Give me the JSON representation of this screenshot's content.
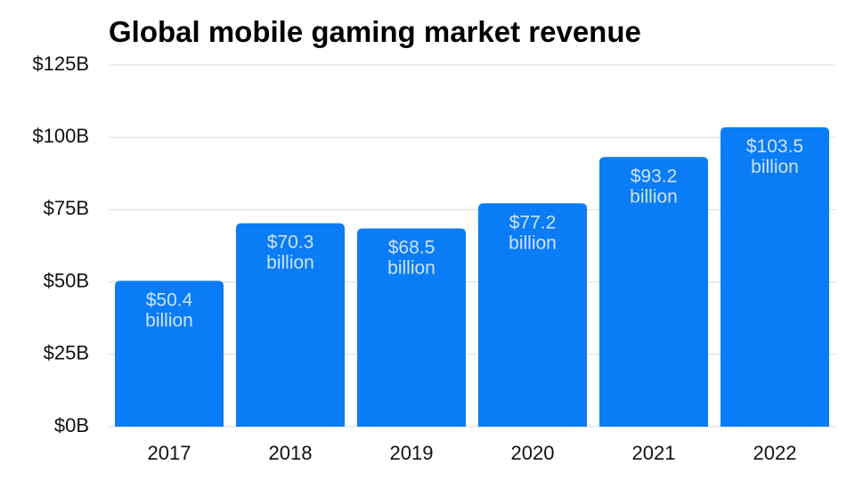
{
  "chart_data": {
    "type": "bar",
    "title": "Global mobile gaming market revenue",
    "categories": [
      "2017",
      "2018",
      "2019",
      "2020",
      "2021",
      "2022"
    ],
    "values": [
      50.4,
      70.3,
      68.5,
      77.2,
      93.2,
      103.5
    ],
    "value_labels": [
      [
        "$50.4",
        "billion"
      ],
      [
        "$70.3",
        "billion"
      ],
      [
        "$68.5",
        "billion"
      ],
      [
        "$77.2",
        "billion"
      ],
      [
        "$93.2",
        "billion"
      ],
      [
        "$103.5",
        "billion"
      ]
    ],
    "color": "#0a7cf5",
    "ylim": [
      0,
      125
    ],
    "yticks": [
      {
        "value": 0,
        "label": "$0B"
      },
      {
        "value": 25,
        "label": "$25B"
      },
      {
        "value": 50,
        "label": "$50B"
      },
      {
        "value": 75,
        "label": "$75B"
      },
      {
        "value": 100,
        "label": "$100B"
      },
      {
        "value": 125,
        "label": "$125B"
      }
    ],
    "grid": true
  }
}
